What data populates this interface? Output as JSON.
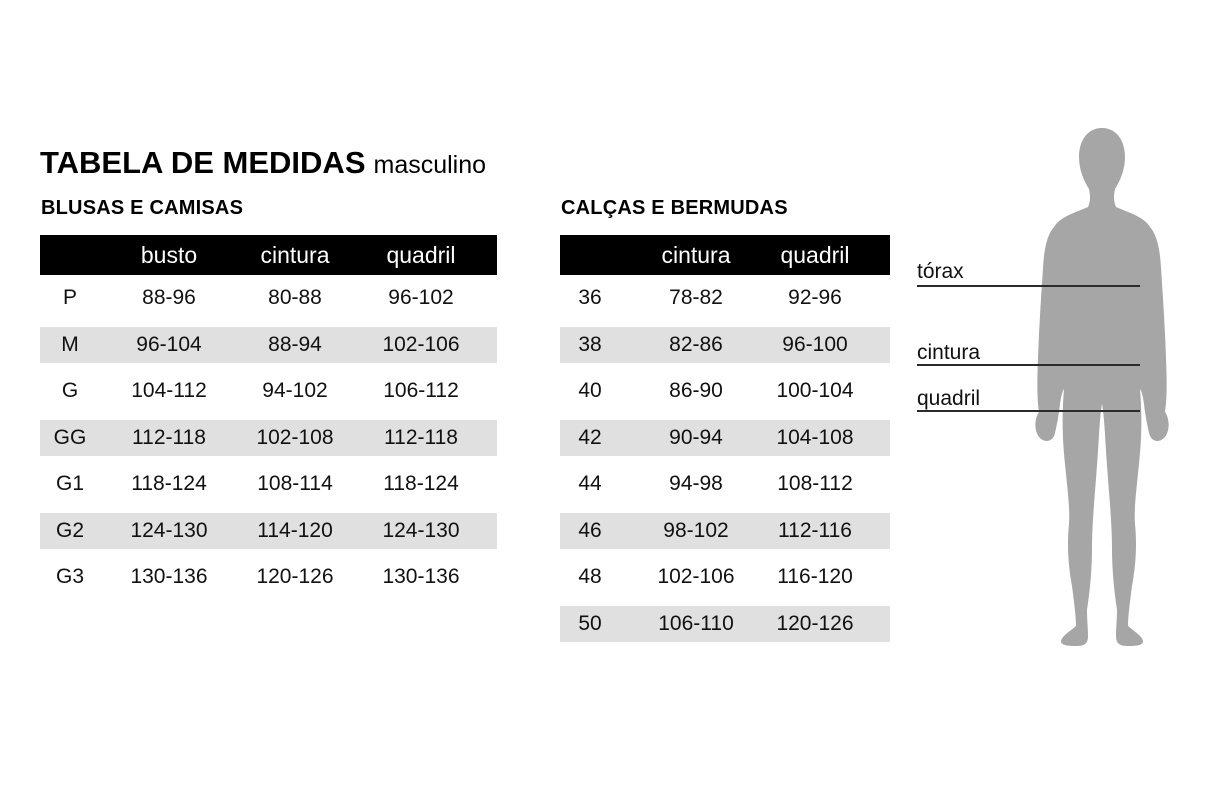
{
  "title": "TABELA DE MEDIDAS",
  "subtitle": "masculino",
  "colors": {
    "header_bg": "#000000",
    "header_text": "#ffffff",
    "stripe": "#e0e0e0",
    "text": "#111111",
    "silhouette": "#a6a6a6",
    "measure_line": "#2b2b2b"
  },
  "tables": [
    {
      "id": "blusas-e-camisas",
      "section": "BLUSAS E CAMISAS",
      "columns": [
        "",
        "busto",
        "cintura",
        "quadril"
      ],
      "rows": [
        {
          "size": "P",
          "values": [
            "88-96",
            "80-88",
            "96-102"
          ]
        },
        {
          "size": "M",
          "values": [
            "96-104",
            "88-94",
            "102-106"
          ]
        },
        {
          "size": "G",
          "values": [
            "104-112",
            "94-102",
            "106-112"
          ]
        },
        {
          "size": "GG",
          "values": [
            "112-118",
            "102-108",
            "112-118"
          ]
        },
        {
          "size": "G1",
          "values": [
            "118-124",
            "108-114",
            "118-124"
          ]
        },
        {
          "size": "G2",
          "values": [
            "124-130",
            "114-120",
            "124-130"
          ]
        },
        {
          "size": "G3",
          "values": [
            "130-136",
            "120-126",
            "130-136"
          ]
        }
      ]
    },
    {
      "id": "calcas-e-bermudas",
      "section": "CALÇAS E BERMUDAS",
      "columns": [
        "",
        "cintura",
        "quadril"
      ],
      "rows": [
        {
          "size": "36",
          "values": [
            "78-82",
            "92-96"
          ]
        },
        {
          "size": "38",
          "values": [
            "82-86",
            "96-100"
          ]
        },
        {
          "size": "40",
          "values": [
            "86-90",
            "100-104"
          ]
        },
        {
          "size": "42",
          "values": [
            "90-94",
            "104-108"
          ]
        },
        {
          "size": "44",
          "values": [
            "94-98",
            "108-112"
          ]
        },
        {
          "size": "46",
          "values": [
            "98-102",
            "112-116"
          ]
        },
        {
          "size": "48",
          "values": [
            "102-106",
            "116-120"
          ]
        },
        {
          "size": "50",
          "values": [
            "106-110",
            "120-126"
          ]
        }
      ]
    }
  ],
  "figure": {
    "labels": [
      {
        "id": "torax",
        "text": "tórax"
      },
      {
        "id": "cintura",
        "text": "cintura"
      },
      {
        "id": "quadril",
        "text": "quadril"
      }
    ]
  }
}
